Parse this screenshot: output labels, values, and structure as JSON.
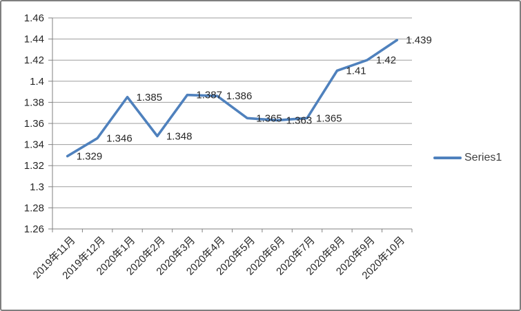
{
  "chart_data": {
    "type": "line",
    "title": "",
    "xlabel": "",
    "ylabel": "",
    "categories": [
      "2019年11月",
      "2019年12月",
      "2020年1月",
      "2020年2月",
      "2020年3月",
      "2020年4月",
      "2020年5月",
      "2020年6月",
      "2020年7月",
      "2020年8月",
      "2020年9月",
      "2020年10月"
    ],
    "series": [
      {
        "name": "Series1",
        "color": "#4f81bd",
        "values": [
          1.329,
          1.346,
          1.385,
          1.348,
          1.387,
          1.386,
          1.365,
          1.363,
          1.365,
          1.41,
          1.42,
          1.439
        ]
      }
    ],
    "data_labels": [
      "1.329",
      "1.346",
      "1.385",
      "1.348",
      "1.387",
      "1.386",
      "1.365",
      "1.363",
      "1.365",
      "1.41",
      "1.42",
      "1.439"
    ],
    "y_axis": {
      "min": 1.26,
      "max": 1.46,
      "ticks": [
        "1.46",
        "1.44",
        "1.42",
        "1.4",
        "1.38",
        "1.36",
        "1.34",
        "1.32",
        "1.3",
        "1.28",
        "1.26"
      ]
    },
    "grid": true,
    "legend_position": "right"
  },
  "legend": {
    "label": "Series1"
  },
  "colors": {
    "series_line": "#4f81bd",
    "gridline": "#9d9d9d",
    "axis": "#808080",
    "text": "#262626",
    "frame_border": "#7f7f7f",
    "background": "#ffffff"
  }
}
